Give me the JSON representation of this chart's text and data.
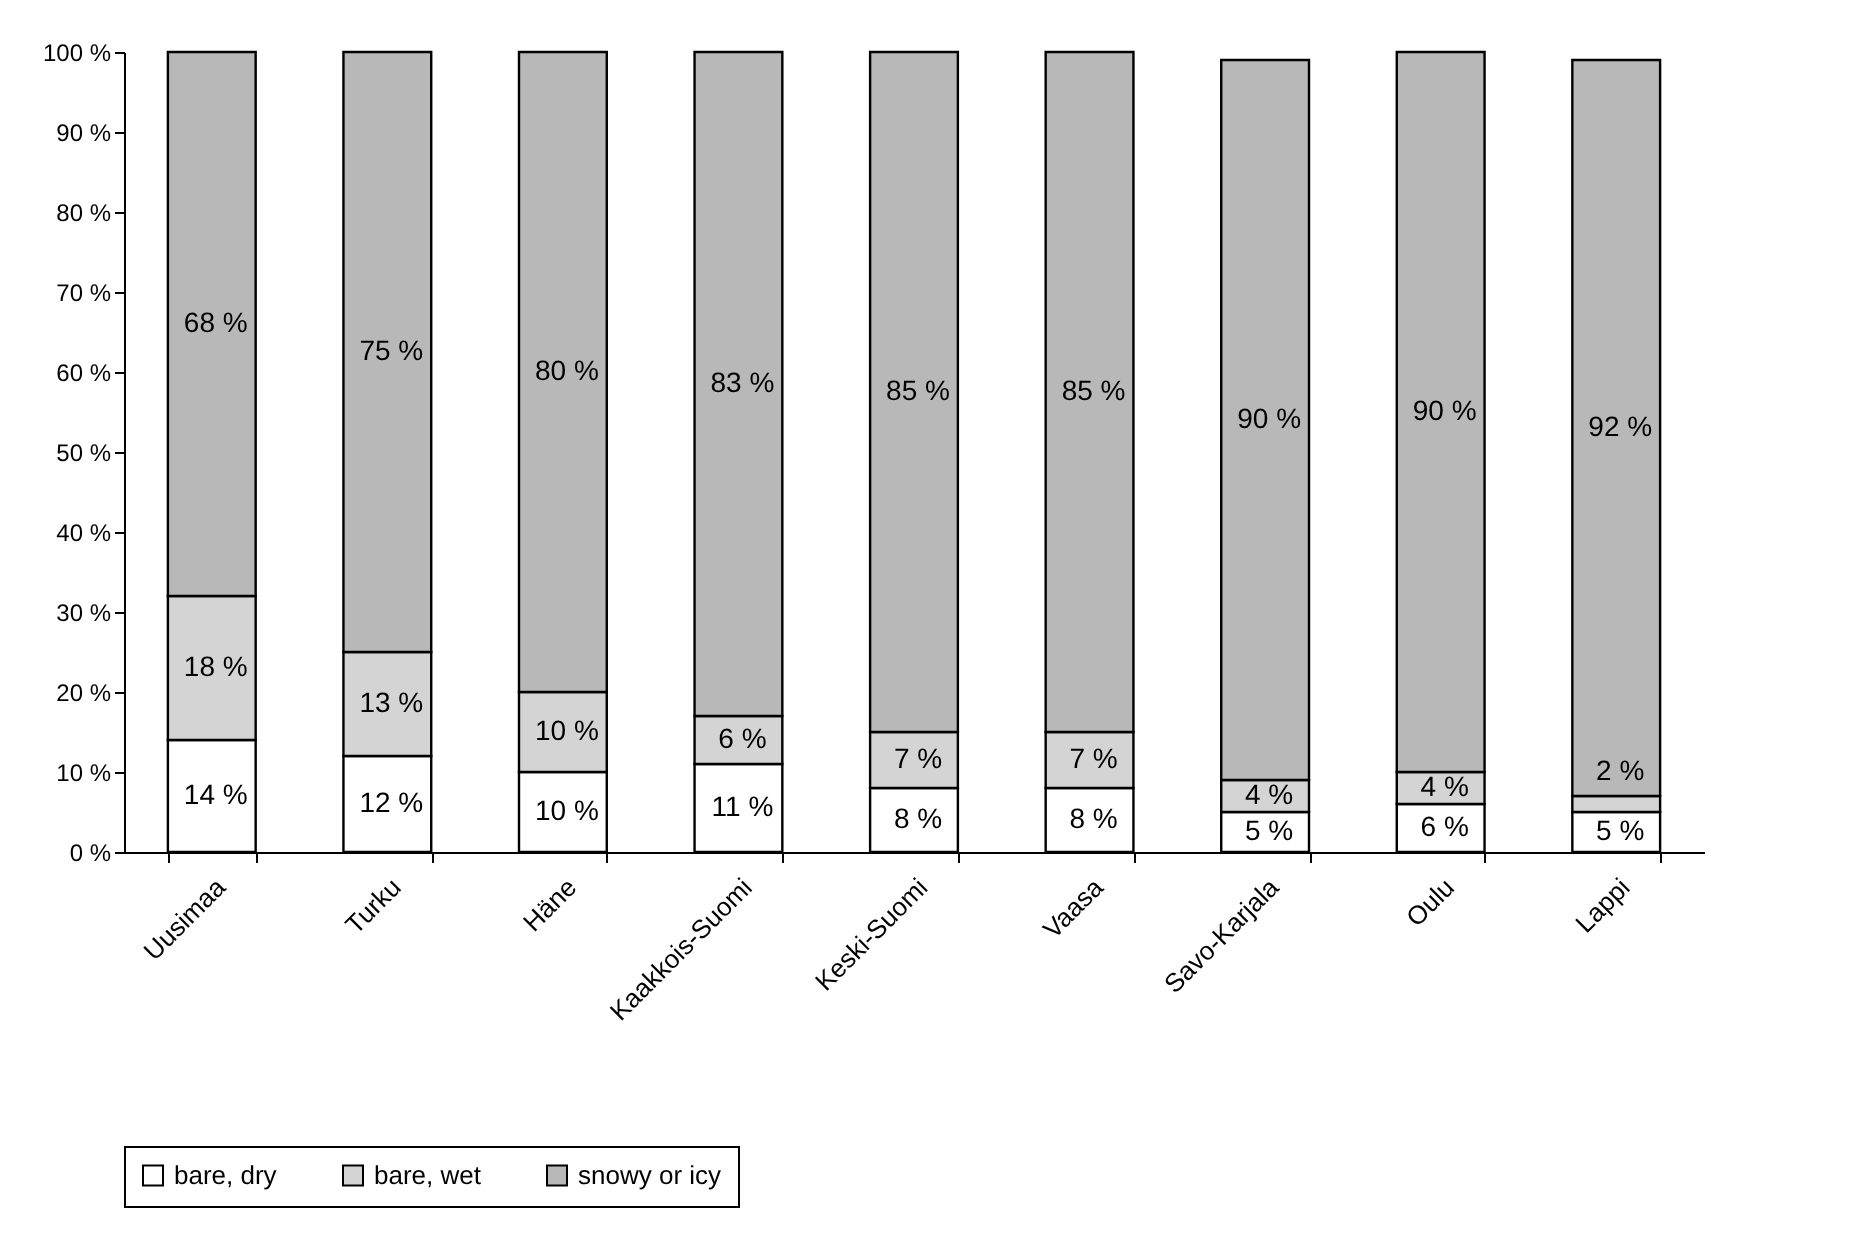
{
  "chart_data": {
    "type": "bar",
    "stacked": true,
    "categories": [
      "Uusimaa",
      "Turku",
      "Häne",
      "Kaakkois-Suomi",
      "Keski-Suomi",
      "Vaasa",
      "Savo-Karjala",
      "Oulu",
      "Lappi"
    ],
    "series": [
      {
        "name": "bare, dry",
        "color": "#ffffff",
        "values": [
          14,
          12,
          10,
          11,
          8,
          8,
          5,
          6,
          5
        ],
        "value_labels": [
          "14 %",
          "12 %",
          "10 %",
          "11 %",
          "8 %",
          "8 %",
          "5 %",
          "6 %",
          "5 %"
        ]
      },
      {
        "name": "bare, wet",
        "color": "#d4d4d4",
        "values": [
          18,
          13,
          10,
          6,
          7,
          7,
          4,
          4,
          2
        ],
        "value_labels": [
          "18 %",
          "13 %",
          "10 %",
          "6 %",
          "7 %",
          "7 %",
          "4 %",
          "4 %",
          "2 %"
        ]
      },
      {
        "name": "snowy or icy",
        "color": "#b8b8b8",
        "values": [
          68,
          75,
          80,
          83,
          85,
          85,
          90,
          90,
          92
        ],
        "value_labels": [
          "68 %",
          "75 %",
          "80 %",
          "83 %",
          "85 %",
          "85 %",
          "90 %",
          "90 %",
          "92 %"
        ]
      }
    ],
    "ylim": [
      0,
      100
    ],
    "yticks": [
      {
        "value": 0,
        "label": "0 %"
      },
      {
        "value": 10,
        "label": "10 %"
      },
      {
        "value": 20,
        "label": "20 %"
      },
      {
        "value": 30,
        "label": "30 %"
      },
      {
        "value": 40,
        "label": "40 %"
      },
      {
        "value": 50,
        "label": "50 %"
      },
      {
        "value": 60,
        "label": "60 %"
      },
      {
        "value": 70,
        "label": "70 %"
      },
      {
        "value": 80,
        "label": "80 %"
      },
      {
        "value": 90,
        "label": "90 %"
      },
      {
        "value": 100,
        "label": "100 %"
      }
    ],
    "grid": false,
    "legend": "bottom"
  }
}
